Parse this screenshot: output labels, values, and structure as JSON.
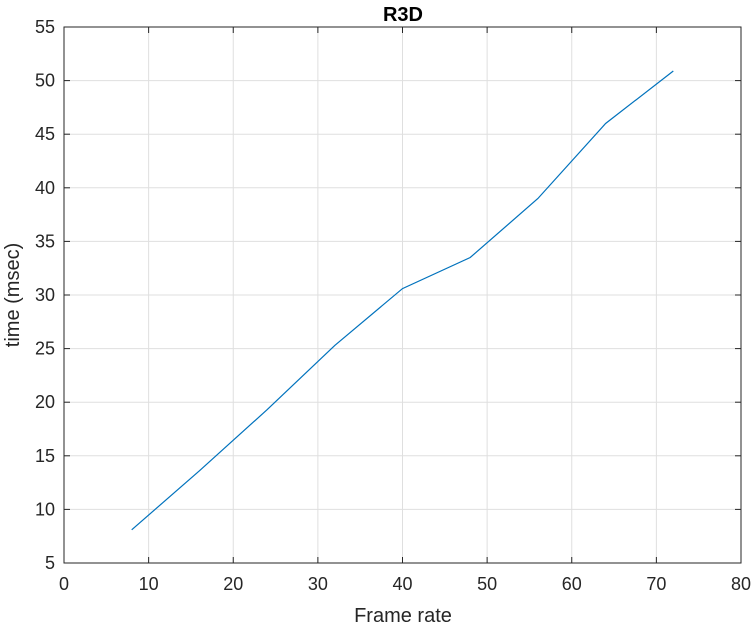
{
  "chart_data": {
    "type": "line",
    "title": "R3D",
    "xlabel": "Frame rate",
    "ylabel": "time (msec)",
    "xlim": [
      0,
      80
    ],
    "ylim": [
      5,
      55
    ],
    "xticks": [
      0,
      10,
      20,
      30,
      40,
      50,
      60,
      70,
      80
    ],
    "yticks": [
      5,
      10,
      15,
      20,
      25,
      30,
      35,
      40,
      45,
      50,
      55
    ],
    "grid": true,
    "series": [
      {
        "x": [
          8,
          16,
          24,
          32,
          40,
          48,
          56,
          64,
          72
        ],
        "y": [
          8.1,
          13.6,
          19.3,
          25.3,
          30.6,
          33.5,
          39.0,
          46.0,
          50.9
        ],
        "color": "#0072bd"
      }
    ]
  }
}
